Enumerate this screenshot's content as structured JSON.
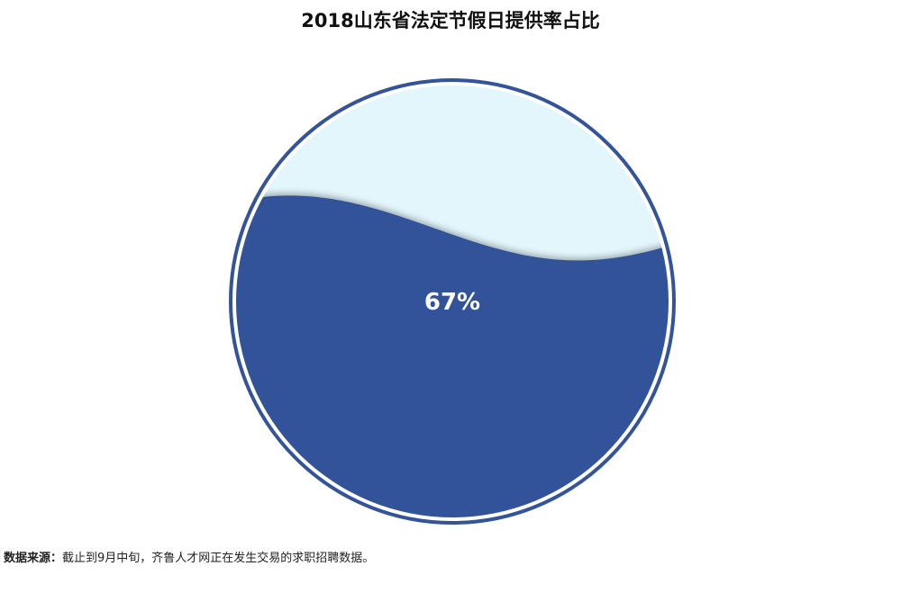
{
  "chart_data": {
    "type": "liquid-fill",
    "title": "2018山东省法定节假日提供率占比",
    "value": 0.67,
    "value_label": "67%",
    "range": [
      0,
      1
    ],
    "colors": {
      "fill": "#33539a",
      "background": "#e2f6fc",
      "border": "#33539a",
      "label": "#ffffff"
    }
  },
  "source": {
    "label": "数据来源：",
    "text": "截止到9月中旬，齐鲁人才网正在发生交易的求职招聘数据。"
  }
}
